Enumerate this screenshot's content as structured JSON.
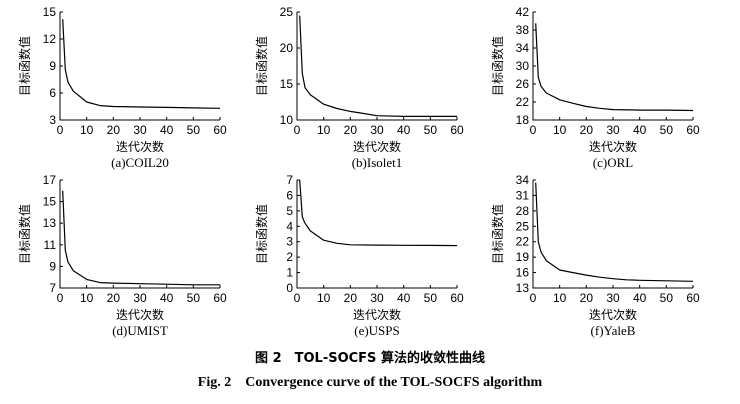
{
  "figure": {
    "caption_cn": "图 2　TOL-SOCFS 算法的收敛性曲线",
    "caption_en": "Fig. 2　Convergence curve of the TOL-SOCFS algorithm"
  },
  "chart_data": [
    {
      "type": "line",
      "subtitle": "(a)COIL20",
      "xlabel": "迭代次数",
      "ylabel": "目标函数值",
      "xlim": [
        0,
        60
      ],
      "ylim": [
        3,
        15
      ],
      "xticks": [
        0,
        10,
        20,
        30,
        40,
        50,
        60
      ],
      "yticks": [
        3,
        6,
        9,
        12,
        15
      ],
      "grid": false,
      "series": [
        {
          "x": [
            1,
            2,
            3,
            5,
            10,
            15,
            20,
            30,
            40,
            50,
            60
          ],
          "y": [
            14.2,
            8.6,
            7.2,
            6.2,
            5.0,
            4.6,
            4.5,
            4.45,
            4.4,
            4.35,
            4.3
          ]
        }
      ]
    },
    {
      "type": "line",
      "subtitle": "(b)Isolet1",
      "xlabel": "迭代次数",
      "ylabel": "目标函数值",
      "xlim": [
        0,
        60
      ],
      "ylim": [
        10,
        25
      ],
      "xticks": [
        0,
        10,
        20,
        30,
        40,
        50,
        60
      ],
      "yticks": [
        10,
        15,
        20,
        25
      ],
      "grid": false,
      "series": [
        {
          "x": [
            1,
            2,
            3,
            5,
            10,
            15,
            20,
            25,
            30,
            40,
            50,
            60
          ],
          "y": [
            24.5,
            16.5,
            14.5,
            13.5,
            12.2,
            11.6,
            11.2,
            10.9,
            10.6,
            10.5,
            10.5,
            10.5
          ]
        }
      ]
    },
    {
      "type": "line",
      "subtitle": "(c)ORL",
      "xlabel": "迭代次数",
      "ylabel": "目标函数值",
      "xlim": [
        0,
        60
      ],
      "ylim": [
        18,
        42
      ],
      "xticks": [
        0,
        10,
        20,
        30,
        40,
        50,
        60
      ],
      "yticks": [
        18,
        22,
        26,
        30,
        34,
        38,
        42
      ],
      "grid": false,
      "series": [
        {
          "x": [
            1,
            2,
            3,
            5,
            10,
            15,
            20,
            25,
            30,
            40,
            50,
            60
          ],
          "y": [
            39.5,
            27.5,
            25.5,
            24.0,
            22.5,
            21.7,
            21.0,
            20.6,
            20.3,
            20.2,
            20.2,
            20.1
          ]
        }
      ]
    },
    {
      "type": "line",
      "subtitle": "(d)UMIST",
      "xlabel": "迭代次数",
      "ylabel": "目标函数值",
      "xlim": [
        0,
        60
      ],
      "ylim": [
        7,
        17
      ],
      "xticks": [
        0,
        10,
        20,
        30,
        40,
        50,
        60
      ],
      "yticks": [
        7,
        9,
        11,
        13,
        15,
        17
      ],
      "grid": false,
      "series": [
        {
          "x": [
            1,
            2,
            3,
            5,
            10,
            15,
            20,
            30,
            40,
            50,
            60
          ],
          "y": [
            16.0,
            10.5,
            9.4,
            8.6,
            7.8,
            7.5,
            7.45,
            7.4,
            7.35,
            7.3,
            7.3
          ]
        }
      ]
    },
    {
      "type": "line",
      "subtitle": "(e)USPS",
      "xlabel": "迭代次数",
      "ylabel": "目标函数值",
      "xlim": [
        0,
        60
      ],
      "ylim": [
        0,
        7
      ],
      "xticks": [
        0,
        10,
        20,
        30,
        40,
        50,
        60
      ],
      "yticks": [
        0,
        1,
        2,
        3,
        4,
        5,
        6,
        7
      ],
      "grid": false,
      "series": [
        {
          "x": [
            1,
            2,
            3,
            5,
            10,
            15,
            20,
            30,
            40,
            50,
            60
          ],
          "y": [
            7.0,
            4.6,
            4.2,
            3.7,
            3.1,
            2.9,
            2.8,
            2.78,
            2.77,
            2.76,
            2.75
          ]
        }
      ]
    },
    {
      "type": "line",
      "subtitle": "(f)YaleB",
      "xlabel": "迭代次数",
      "ylabel": "目标函数值",
      "xlim": [
        0,
        60
      ],
      "ylim": [
        13,
        34
      ],
      "xticks": [
        0,
        10,
        20,
        30,
        40,
        50,
        60
      ],
      "yticks": [
        13,
        16,
        19,
        22,
        25,
        28,
        31,
        34
      ],
      "grid": false,
      "series": [
        {
          "x": [
            1,
            2,
            3,
            5,
            10,
            15,
            20,
            25,
            30,
            35,
            40,
            50,
            60
          ],
          "y": [
            33.5,
            22.0,
            20.0,
            18.3,
            16.5,
            16.0,
            15.5,
            15.1,
            14.8,
            14.6,
            14.5,
            14.4,
            14.3
          ]
        }
      ]
    }
  ]
}
